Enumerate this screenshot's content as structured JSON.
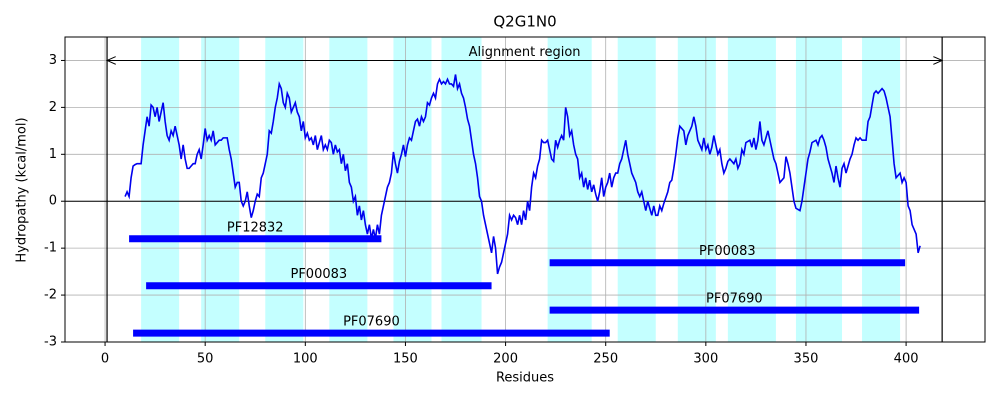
{
  "chart_data": {
    "type": "line",
    "title": "Q2G1N0",
    "x_label": "Residues",
    "y_label": "Hydropathy (kcal/mol)",
    "xlim": [
      -20,
      439.4
    ],
    "ylim": [
      -3,
      3.5
    ],
    "xticks": [
      0,
      50,
      100,
      150,
      200,
      250,
      300,
      350,
      400
    ],
    "yticks": [
      -3,
      -2,
      -1,
      0,
      1,
      2,
      3
    ],
    "grid": true,
    "hline": 0,
    "region_color": "#c4ffff",
    "regions": [
      {
        "start": 18,
        "end": 37
      },
      {
        "start": 48,
        "end": 67
      },
      {
        "start": 80,
        "end": 99
      },
      {
        "start": 112,
        "end": 131
      },
      {
        "start": 144,
        "end": 163
      },
      {
        "start": 168,
        "end": 188
      },
      {
        "start": 221,
        "end": 243
      },
      {
        "start": 256,
        "end": 275
      },
      {
        "start": 286,
        "end": 305
      },
      {
        "start": 311,
        "end": 335
      },
      {
        "start": 345,
        "end": 368
      },
      {
        "start": 378,
        "end": 397
      }
    ],
    "alignment": {
      "label": "Alignment region",
      "start": 1,
      "end": 418,
      "y": 3
    },
    "domain_color": "#0000ff",
    "domains": [
      {
        "name": "PF12832",
        "start": 12,
        "end": 138,
        "y": -0.8
      },
      {
        "name": "PF00083",
        "start": 222,
        "end": 399.5,
        "y": -1.31
      },
      {
        "name": "PF00083",
        "start": 20.5,
        "end": 193,
        "y": -1.8
      },
      {
        "name": "PF07690",
        "start": 222,
        "end": 406.5,
        "y": -2.32
      },
      {
        "name": "PF07690",
        "start": 14,
        "end": 252,
        "y": -2.81
      }
    ],
    "x": [
      10,
      11,
      12,
      13,
      14,
      15,
      16,
      17,
      18,
      19,
      20,
      21,
      22,
      23,
      24,
      25,
      26,
      27,
      28,
      29,
      30,
      31,
      32,
      33,
      34,
      35,
      36,
      37,
      38,
      39,
      40,
      41,
      42,
      43,
      44,
      45,
      46,
      47,
      48,
      49,
      50,
      51,
      52,
      53,
      54,
      55,
      56,
      57,
      58,
      59,
      60,
      61,
      62,
      63,
      64,
      65,
      66,
      67,
      68,
      69,
      70,
      71,
      72,
      73,
      74,
      75,
      76,
      77,
      78,
      79,
      80,
      81,
      82,
      83,
      84,
      85,
      86,
      87,
      88,
      89,
      90,
      91,
      92,
      93,
      94,
      95,
      96,
      97,
      98,
      99,
      100,
      101,
      102,
      103,
      104,
      105,
      106,
      107,
      108,
      109,
      110,
      111,
      112,
      113,
      114,
      115,
      116,
      117,
      118,
      119,
      120,
      121,
      122,
      123,
      124,
      125,
      126,
      127,
      128,
      129,
      130,
      131,
      132,
      133,
      134,
      135,
      136,
      137,
      138,
      139,
      140,
      141,
      142,
      143,
      144,
      145,
      146,
      147,
      148,
      149,
      150,
      151,
      152,
      153,
      154,
      155,
      156,
      157,
      158,
      159,
      160,
      161,
      162,
      163,
      164,
      165,
      166,
      167,
      168,
      169,
      170,
      171,
      172,
      173,
      174,
      175,
      176,
      177,
      178,
      179,
      180,
      181,
      182,
      183,
      184,
      185,
      186,
      187,
      188,
      189,
      190,
      191,
      192,
      193,
      194,
      195,
      196,
      197,
      198,
      199,
      200,
      201,
      202,
      203,
      204,
      205,
      206,
      207,
      208,
      209,
      210,
      211,
      212,
      213,
      214,
      215,
      216,
      217,
      218,
      219,
      220,
      221,
      222,
      223,
      224,
      225,
      226,
      227,
      228,
      229,
      230,
      231,
      232,
      233,
      234,
      235,
      236,
      237,
      238,
      239,
      240,
      241,
      242,
      243,
      244,
      245,
      246,
      247,
      248,
      249,
      250,
      251,
      252,
      253,
      254,
      255,
      256,
      257,
      258,
      259,
      260,
      261,
      262,
      263,
      265,
      266,
      267,
      268,
      269,
      270,
      271,
      273,
      274,
      275,
      276,
      277,
      278,
      279,
      281,
      282,
      283,
      284,
      285,
      286,
      287,
      289,
      290,
      291,
      292,
      293,
      294,
      295,
      296,
      298,
      299,
      300,
      301,
      302,
      303,
      304,
      306,
      307,
      308,
      309,
      310,
      311,
      312,
      314,
      315,
      316,
      317,
      318,
      319,
      320,
      322,
      323,
      324,
      325,
      326,
      327,
      328,
      329,
      331,
      332,
      333,
      334,
      335,
      336,
      337,
      339,
      340,
      341,
      342,
      343,
      344,
      345,
      347,
      348,
      349,
      350,
      351,
      352,
      353,
      355,
      356,
      357,
      358,
      359,
      360,
      361,
      363,
      364,
      365,
      366,
      367,
      368,
      369,
      370,
      372,
      373,
      374,
      375,
      376,
      377,
      378,
      380,
      381,
      382,
      383,
      384,
      385,
      386,
      388,
      389,
      390,
      391,
      392,
      393,
      394,
      395,
      397,
      398,
      399,
      400,
      401,
      402,
      403,
      405,
      406,
      407
    ],
    "series": [
      {
        "color": "#0000ee",
        "values": [
          0.1,
          0.2,
          0.1,
          0.5,
          0.75,
          0.78,
          0.8,
          0.8,
          0.8,
          1.2,
          1.5,
          1.8,
          1.6,
          2.05,
          2.0,
          1.8,
          2.0,
          1.7,
          1.9,
          2.1,
          1.7,
          1.4,
          1.3,
          1.5,
          1.4,
          1.6,
          1.4,
          1.2,
          0.9,
          1.2,
          0.9,
          0.7,
          0.7,
          0.75,
          0.8,
          0.8,
          1.0,
          1.1,
          0.9,
          1.2,
          1.55,
          1.3,
          1.4,
          1.3,
          1.5,
          1.2,
          1.25,
          1.3,
          1.3,
          1.35,
          1.35,
          1.35,
          1.1,
          0.9,
          0.6,
          0.3,
          0.4,
          0.4,
          0.0,
          -0.1,
          0.0,
          0.2,
          -0.1,
          -0.35,
          -0.2,
          0.0,
          0.15,
          0.1,
          0.5,
          0.6,
          0.8,
          1.0,
          1.5,
          1.45,
          1.7,
          2.0,
          2.2,
          2.5,
          2.4,
          2.1,
          2.0,
          2.3,
          2.2,
          1.9,
          2.0,
          2.1,
          1.9,
          1.8,
          1.5,
          1.7,
          1.35,
          1.45,
          1.3,
          1.35,
          1.2,
          1.4,
          1.1,
          1.25,
          1.4,
          1.1,
          1.2,
          1.1,
          1.3,
          1.25,
          1.0,
          1.2,
          1.05,
          1.1,
          0.8,
          1.0,
          0.65,
          0.8,
          0.4,
          0.3,
          0.0,
          0.1,
          -0.3,
          -0.1,
          -0.4,
          -0.2,
          -0.5,
          -0.7,
          -0.5,
          -0.8,
          -0.6,
          -0.8,
          -0.5,
          -0.7,
          -0.3,
          -0.1,
          0.1,
          0.3,
          0.4,
          0.6,
          1.05,
          0.8,
          0.6,
          0.85,
          1.0,
          1.2,
          0.95,
          1.2,
          1.35,
          1.3,
          1.5,
          1.7,
          1.75,
          1.6,
          1.8,
          1.7,
          1.8,
          2.1,
          2.05,
          2.2,
          2.3,
          2.2,
          2.5,
          2.6,
          2.5,
          2.55,
          2.5,
          2.6,
          2.5,
          2.5,
          2.45,
          2.7,
          2.4,
          2.5,
          2.3,
          2.2,
          2.0,
          1.75,
          1.6,
          1.3,
          1.0,
          0.8,
          0.5,
          0.1,
          0.0,
          -0.3,
          -0.5,
          -0.7,
          -0.9,
          -1.1,
          -0.75,
          -1.0,
          -1.55,
          -1.4,
          -1.3,
          -1.1,
          -0.9,
          -0.7,
          -0.3,
          -0.4,
          -0.3,
          -0.35,
          -0.5,
          -0.3,
          -0.5,
          -0.2,
          -0.4,
          0.0,
          -0.2,
          0.3,
          0.6,
          0.5,
          0.75,
          0.9,
          1.3,
          1.25,
          1.25,
          1.3,
          1.1,
          0.9,
          0.85,
          1.3,
          1.15,
          1.3,
          1.4,
          1.3,
          2.0,
          1.8,
          1.4,
          1.5,
          1.2,
          1.0,
          0.9,
          0.5,
          0.6,
          0.3,
          0.5,
          0.25,
          0.45,
          0.2,
          0.35,
          0.15,
          0.0,
          0.2,
          0.5,
          0.1,
          0.3,
          0.4,
          0.6,
          0.3,
          0.5,
          0.6,
          0.6,
          0.8,
          0.9,
          1.1,
          1.3,
          1.0,
          0.8,
          0.6,
          0.4,
          0.2,
          0.1,
          0.2,
          0.0,
          -0.2,
          0.0,
          -0.3,
          -0.1,
          -0.3,
          -0.3,
          -0.1,
          -0.2,
          -0.05,
          0.2,
          0.4,
          0.45,
          0.7,
          1.0,
          1.35,
          1.6,
          1.5,
          1.2,
          1.4,
          1.5,
          1.6,
          1.8,
          1.6,
          1.3,
          1.1,
          1.35,
          1.1,
          1.2,
          1.0,
          1.15,
          1.4,
          1.0,
          1.1,
          0.8,
          0.6,
          0.7,
          0.85,
          0.9,
          0.8,
          0.9,
          0.7,
          0.8,
          1.1,
          1.0,
          1.25,
          1.3,
          1.15,
          1.35,
          1.1,
          1.3,
          1.7,
          1.3,
          1.2,
          1.5,
          1.3,
          1.1,
          0.9,
          0.8,
          0.6,
          0.4,
          0.5,
          0.95,
          0.8,
          0.6,
          0.3,
          0.0,
          -0.15,
          -0.2,
          0.0,
          0.3,
          0.6,
          0.9,
          1.05,
          1.25,
          1.3,
          1.2,
          1.35,
          1.4,
          1.3,
          1.15,
          0.9,
          0.6,
          0.4,
          0.75,
          0.5,
          0.3,
          0.7,
          0.8,
          0.6,
          0.9,
          1.0,
          1.2,
          1.35,
          1.3,
          1.35,
          1.3,
          1.3,
          1.7,
          1.8,
          2.05,
          2.3,
          2.35,
          2.3,
          2.4,
          2.35,
          2.2,
          2.0,
          1.8,
          1.3,
          0.8,
          0.5,
          0.6,
          0.4,
          0.5,
          0.4,
          -0.1,
          -0.2,
          -0.5,
          -0.7,
          -1.1,
          -0.95
        ]
      }
    ]
  }
}
